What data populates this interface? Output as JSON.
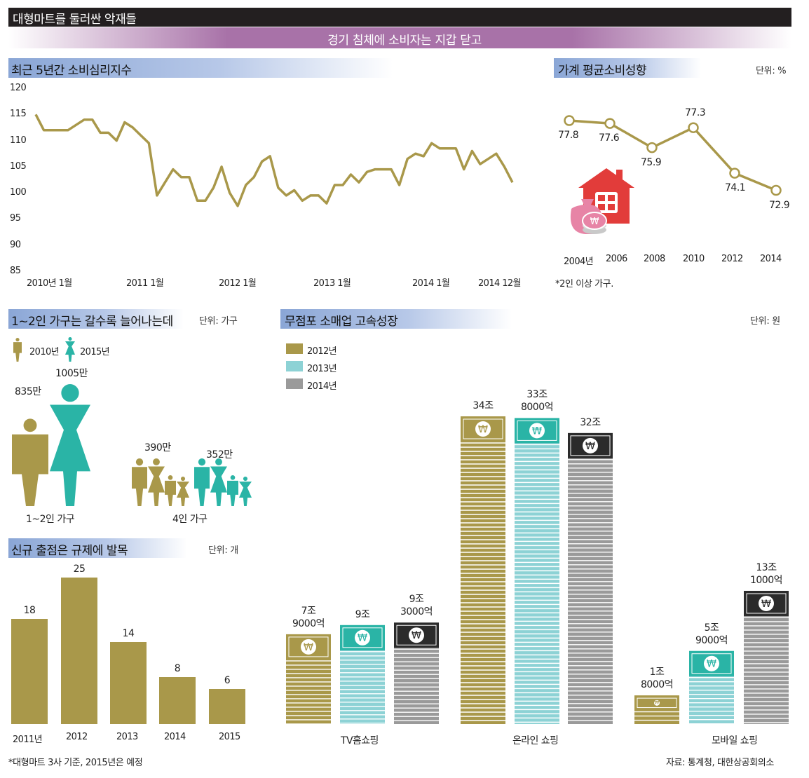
{
  "header": {
    "title": "대형마트를 둘러싼 악재들",
    "subtitle": "경기 침체에 소비자는 지갑 닫고"
  },
  "colors": {
    "olive": "#a9984a",
    "teal": "#2ab4a6",
    "light_teal": "#8dd2d5",
    "gray": "#9a9a9a",
    "dark": "#231f20",
    "red": "#e23c3a",
    "pink": "#e784a6",
    "purple": "#a872a8",
    "blue_head": "#8aa6d6"
  },
  "sections": {
    "consumer_sentiment": {
      "title": "최근 5년간 소비심리지수"
    },
    "propensity": {
      "title": "가계 평균소비성향",
      "unit": "단위: %",
      "note": "*2인 이상 가구."
    },
    "households": {
      "title": "1~2인 가구는 갈수록 늘어나는데",
      "unit": "단위: 가구"
    },
    "new_stores": {
      "title": "신규 출점은 규제에 발목",
      "unit": "단위: 개"
    },
    "non_store": {
      "title": "무점포 소매업 고속성장",
      "unit": "단위: 원"
    }
  },
  "footer": {
    "left_note": "*대형마트 3사 기준, 2015년은 예정",
    "source": "자료: 통계청, 대한상공회의소"
  },
  "chart_data": [
    {
      "id": "consumer_sentiment",
      "type": "line",
      "title": "최근 5년간 소비심리지수",
      "ylim": [
        85,
        120
      ],
      "yticks": [
        120,
        115,
        110,
        105,
        100,
        95,
        90,
        85
      ],
      "x_tick_labels": [
        "2010년 1월",
        "2011 1월",
        "2012 1월",
        "2013 1월",
        "2014 1월",
        "2014 12월"
      ],
      "x_tick_index": [
        0,
        12,
        24,
        36,
        48,
        59
      ],
      "series": [
        {
          "values": [
            115,
            112,
            112,
            112,
            112,
            113,
            114,
            114,
            111.5,
            111.5,
            110,
            113.5,
            112.5,
            111,
            109.5,
            99.5,
            102,
            104.5,
            103,
            103,
            98.5,
            98.5,
            101,
            105,
            100,
            97.5,
            101.5,
            103,
            106,
            107,
            101,
            99.5,
            100.5,
            98.5,
            99.5,
            99.5,
            98,
            101.5,
            101.5,
            103.5,
            102,
            104,
            104.5,
            104.5,
            104.5,
            101.5,
            106.5,
            107.5,
            107,
            109.5,
            108.5,
            108.5,
            108.5,
            104.5,
            108,
            105.5,
            106.5,
            107.5,
            105,
            102
          ]
        }
      ]
    },
    {
      "id": "propensity",
      "type": "line",
      "title": "가계 평균소비성향",
      "categories": [
        "2004년",
        "2006",
        "2008",
        "2010",
        "2012",
        "2014"
      ],
      "series": [
        {
          "values": [
            77.8,
            77.6,
            75.9,
            77.3,
            74.1,
            72.9
          ]
        }
      ],
      "value_labels": [
        "77.8",
        "77.6",
        "75.9",
        "77.3",
        "74.1",
        "72.9"
      ]
    },
    {
      "id": "households",
      "type": "bar",
      "title": "1~2인 가구는 갈수록 늘어나는데",
      "categories": [
        "1~2인 가구",
        "4인 가구"
      ],
      "series": [
        {
          "name": "2010년",
          "values": [
            8350000,
            3900000
          ],
          "labels": [
            "835만",
            "390만"
          ]
        },
        {
          "name": "2015년",
          "values": [
            10050000,
            3520000
          ],
          "labels": [
            "1005만",
            "352만"
          ]
        }
      ]
    },
    {
      "id": "new_stores",
      "type": "bar",
      "title": "신규 출점은 규제에 발목",
      "categories": [
        "2011년",
        "2012",
        "2013",
        "2014",
        "2015"
      ],
      "values": [
        18,
        25,
        14,
        8,
        6
      ],
      "value_labels": [
        "18",
        "25",
        "14",
        "8",
        "6"
      ],
      "ylim": [
        0,
        25
      ]
    },
    {
      "id": "non_store",
      "type": "bar",
      "title": "무점포 소매업 고속성장",
      "categories": [
        "TV홈쇼핑",
        "온라인 쇼핑",
        "모바일 쇼핑"
      ],
      "series": [
        {
          "name": "2012년",
          "values": [
            7.9,
            34,
            1.8
          ],
          "labels": [
            "7조\n9000억",
            "34조",
            "1조\n8000억"
          ]
        },
        {
          "name": "2013년",
          "values": [
            9,
            33.8,
            5.9
          ],
          "labels": [
            "9조",
            "33조\n8000억",
            "5조\n9000억"
          ]
        },
        {
          "name": "2014년",
          "values": [
            9.3,
            32,
            13.1
          ],
          "labels": [
            "9조\n3000억",
            "32조",
            "13조\n1000억"
          ]
        }
      ],
      "bill_symbol": "₩"
    }
  ]
}
